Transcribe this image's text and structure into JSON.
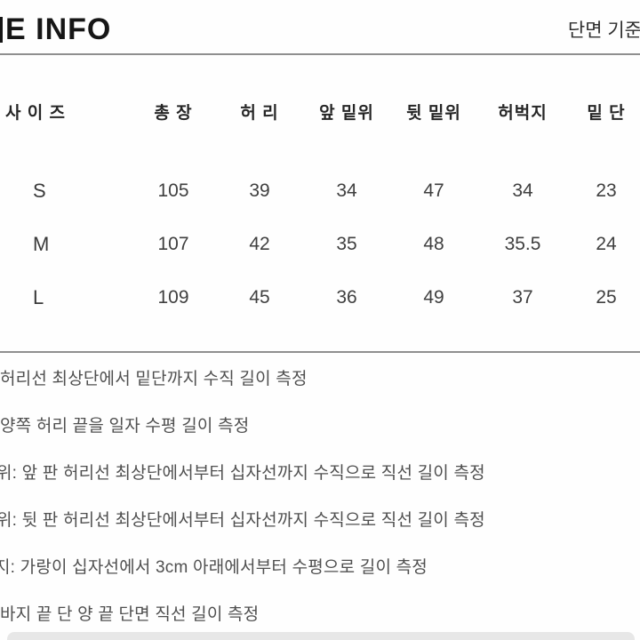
{
  "header": {
    "title": "E INFO",
    "note": "단면 기준"
  },
  "table": {
    "columns": [
      "사 이 즈",
      "총 장",
      "허 리",
      "앞 밑위",
      "뒷 밑위",
      "허벅지",
      "밑 단"
    ],
    "rows": [
      {
        "size": "S",
        "values": [
          "105",
          "39",
          "34",
          "47",
          "34",
          "23"
        ]
      },
      {
        "size": "M",
        "values": [
          "107",
          "42",
          "35",
          "48",
          "35.5",
          "24"
        ]
      },
      {
        "size": "L",
        "values": [
          "109",
          "45",
          "36",
          "49",
          "37",
          "25"
        ]
      }
    ]
  },
  "notes": {
    "lines": [
      "허리선 최상단에서 밑단까지 수직 길이 측정",
      "양쪽 허리 끝을 일자 수평 길이 측정",
      "위: 앞 판 허리선 최상단에서부터 십자선까지 수직으로 직선 길이 측정",
      "위: 뒷 판 허리선 최상단에서부터 십자선까지 수직으로 직선 길이 측정",
      "지: 가랑이 십자선에서 3cm 아래에서부터 수평으로 길이 측정",
      "바지 끝 단 양 끝 단면 직선 길이 측정"
    ]
  },
  "colors": {
    "text_primary": "#161616",
    "text_secondary": "#4f4f4f",
    "divider": "#8f8f8f",
    "bottom_bar": "#e7e7e7",
    "background": "#fefefe"
  }
}
